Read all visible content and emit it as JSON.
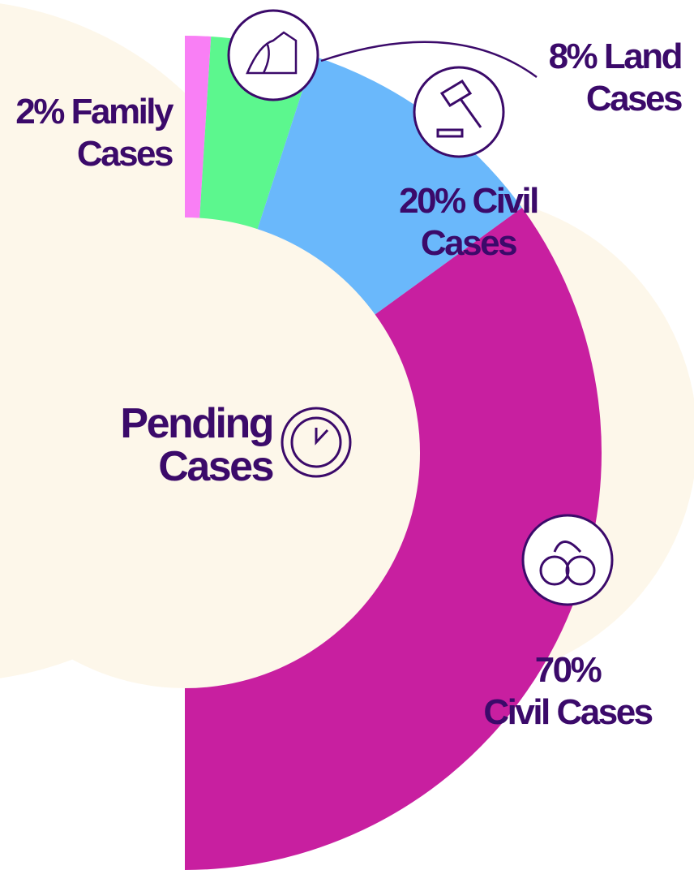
{
  "chart_data": {
    "type": "pie",
    "title": "Pending Cases",
    "categories": [
      "Family Cases",
      "Land Cases",
      "Civil Cases",
      "Civil Cases"
    ],
    "values": [
      2,
      8,
      20,
      70
    ],
    "value_labels": [
      "2%",
      "8%",
      "20%",
      "70%"
    ],
    "colors": [
      "#f97ff5",
      "#5cf78e",
      "#6ab8fb",
      "#c81fa0"
    ]
  }
}
